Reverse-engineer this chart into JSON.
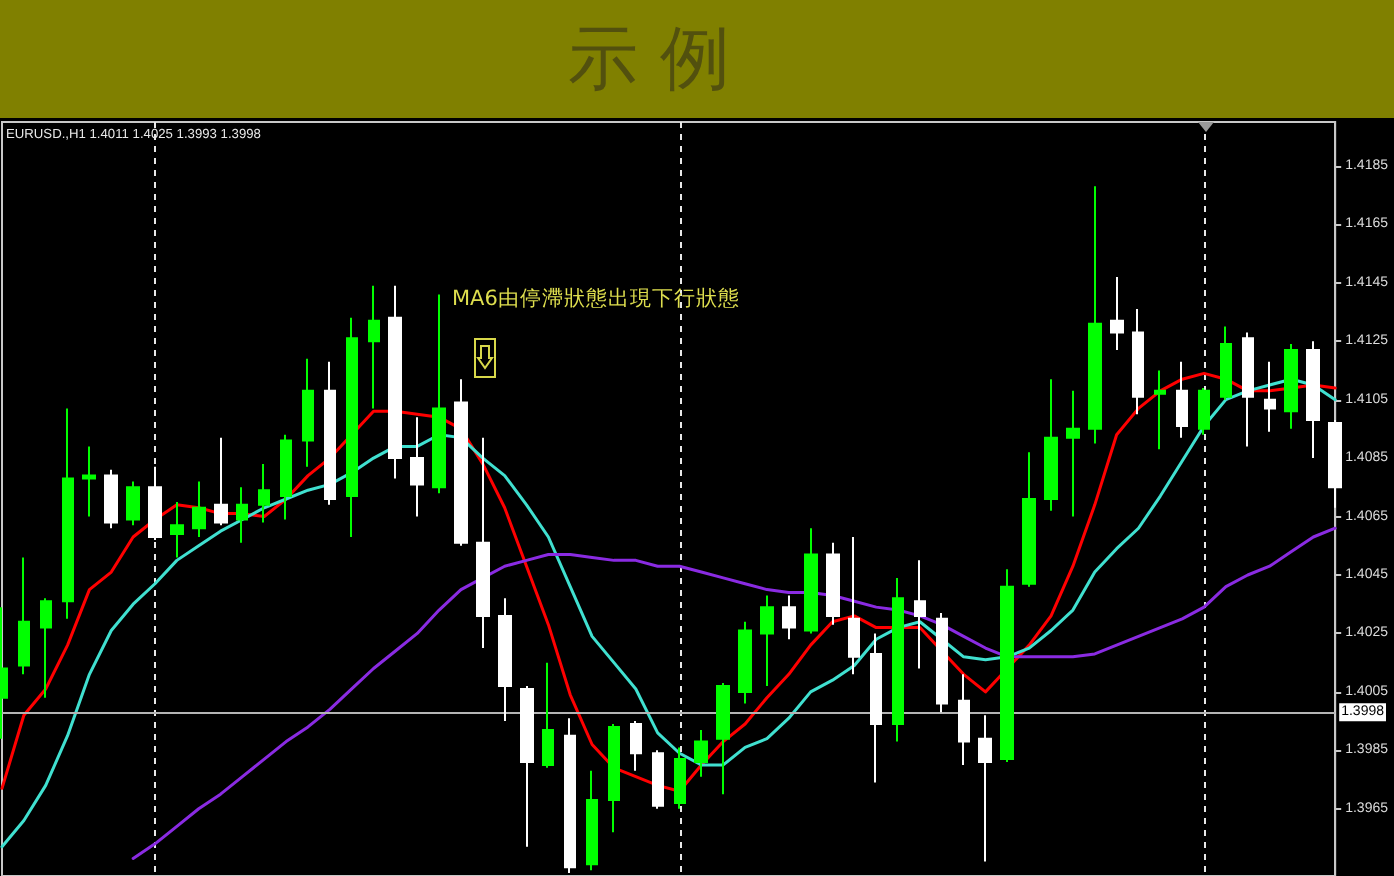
{
  "chart_data": {
    "type": "candlestick",
    "title": "示 例",
    "subtitle": "EURUSD.,H1 1.4011 1.4025 1.3993 1.3998",
    "annotations": [
      "MA6由停滯狀態出現下行狀態"
    ],
    "categories": [
      null,
      null,
      null,
      null,
      null,
      null,
      null,
      null,
      null,
      null,
      null,
      null,
      null,
      null,
      null,
      null,
      null,
      null,
      null,
      null,
      null,
      null,
      null,
      null,
      null,
      null,
      null,
      null,
      null,
      null,
      null,
      null,
      null,
      null,
      null,
      null,
      null,
      null,
      null,
      null,
      null,
      null,
      null,
      null,
      null,
      null,
      null,
      null,
      null,
      null,
      null,
      null,
      null,
      null,
      null,
      null,
      null,
      null,
      null,
      null,
      null,
      null
    ],
    "ohlc": [
      [
        1.4003,
        1.4034,
        1.3989,
        1.4013
      ],
      [
        1.4014,
        1.4051,
        1.4011,
        1.4029
      ],
      [
        1.4027,
        1.4037,
        1.4003,
        1.4036
      ],
      [
        1.4036,
        1.4102,
        1.403,
        1.4078
      ],
      [
        1.4078,
        1.4089,
        1.4065,
        1.4079
      ],
      [
        1.4079,
        1.4081,
        1.4061,
        1.4063
      ],
      [
        1.4064,
        1.4077,
        1.4062,
        1.4075
      ],
      [
        1.4075,
        1.4082,
        1.4057,
        1.4058
      ],
      [
        1.4059,
        1.407,
        1.4051,
        1.4062
      ],
      [
        1.4061,
        1.4077,
        1.4058,
        1.4068
      ],
      [
        1.4069,
        1.4092,
        1.4062,
        1.4063
      ],
      [
        1.4064,
        1.4075,
        1.4056,
        1.4069
      ],
      [
        1.4069,
        1.4083,
        1.4063,
        1.4074
      ],
      [
        1.4072,
        1.4093,
        1.4064,
        1.4091
      ],
      [
        1.4091,
        1.4119,
        1.4082,
        1.4108
      ],
      [
        1.4108,
        1.4118,
        1.4069,
        1.4071
      ],
      [
        1.4072,
        1.4133,
        1.4058,
        1.4126
      ],
      [
        1.4125,
        1.4144,
        1.4102,
        1.4132
      ],
      [
        1.4133,
        1.4144,
        1.4078,
        1.4085
      ],
      [
        1.4085,
        1.4099,
        1.4065,
        1.4076
      ],
      [
        1.4075,
        1.4141,
        1.4073,
        1.4102
      ],
      [
        1.4104,
        1.4112,
        1.4055,
        1.4056
      ],
      [
        1.4056,
        1.4092,
        1.402,
        1.4031
      ],
      [
        1.4031,
        1.4037,
        1.3995,
        1.4007
      ],
      [
        1.4006,
        1.4007,
        1.3952,
        1.3981
      ],
      [
        1.398,
        1.4015,
        1.3979,
        1.3992
      ],
      [
        1.399,
        1.3996,
        1.3943,
        1.3945
      ],
      [
        1.3946,
        1.3978,
        1.3944,
        1.3968
      ],
      [
        1.3968,
        1.3994,
        1.3957,
        1.3993
      ],
      [
        1.3994,
        1.3995,
        1.3978,
        1.3984
      ],
      [
        1.3984,
        1.3985,
        1.3965,
        1.3966
      ],
      [
        1.3967,
        1.3986,
        1.3965,
        1.3982
      ],
      [
        1.3981,
        1.3992,
        1.3976,
        1.3988
      ],
      [
        1.3989,
        1.4008,
        1.397,
        1.4007
      ],
      [
        1.4005,
        1.4029,
        1.4001,
        1.4026
      ],
      [
        1.4025,
        1.4038,
        1.4007,
        1.4034
      ],
      [
        1.4034,
        1.4038,
        1.4023,
        1.4027
      ],
      [
        1.4026,
        1.4061,
        1.4025,
        1.4052
      ],
      [
        1.4052,
        1.4056,
        1.4028,
        1.4031
      ],
      [
        1.403,
        1.4058,
        1.4011,
        1.4017
      ],
      [
        1.4018,
        1.4025,
        1.3974,
        1.3994
      ],
      [
        1.3994,
        1.4044,
        1.3988,
        1.4037
      ],
      [
        1.4036,
        1.405,
        1.4013,
        1.4031
      ],
      [
        1.403,
        1.4032,
        1.3998,
        1.4001
      ],
      [
        1.4002,
        1.4011,
        1.398,
        1.3988
      ],
      [
        1.3989,
        1.3997,
        1.3947,
        1.3981
      ],
      [
        1.3982,
        1.4047,
        1.3981,
        1.4041
      ],
      [
        1.4042,
        1.4087,
        1.4041,
        1.4071
      ],
      [
        1.4071,
        1.4112,
        1.4067,
        1.4092
      ],
      [
        1.4092,
        1.4108,
        1.4065,
        1.4095
      ],
      [
        1.4095,
        1.4178,
        1.409,
        1.4131
      ],
      [
        1.4132,
        1.4147,
        1.4122,
        1.4128
      ],
      [
        1.4128,
        1.4136,
        1.41,
        1.4106
      ],
      [
        1.4107,
        1.4115,
        1.4088,
        1.4108
      ],
      [
        1.4108,
        1.4118,
        1.4092,
        1.4096
      ],
      [
        1.4095,
        1.4109,
        1.4093,
        1.4108
      ],
      [
        1.4106,
        1.413,
        1.4105,
        1.4124
      ],
      [
        1.4126,
        1.4128,
        1.4089,
        1.4106
      ],
      [
        1.4105,
        1.4118,
        1.4094,
        1.4102
      ],
      [
        1.4101,
        1.4124,
        1.4095,
        1.4122
      ],
      [
        1.4122,
        1.4125,
        1.4085,
        1.4098
      ],
      [
        1.4097,
        1.4098,
        1.4068,
        1.4075
      ]
    ],
    "colors": [
      "#00ff00",
      "#00ff00",
      "#00ff00",
      "#00ff00",
      "#00ff00",
      "#ffffff",
      "#00ff00",
      "#ffffff",
      "#00ff00",
      "#00ff00",
      "#ffffff",
      "#00ff00",
      "#00ff00",
      "#00ff00",
      "#00ff00",
      "#ffffff",
      "#00ff00",
      "#00ff00",
      "#ffffff",
      "#ffffff",
      "#00ff00",
      "#ffffff",
      "#ffffff",
      "#ffffff",
      "#ffffff",
      "#00ff00",
      "#ffffff",
      "#00ff00",
      "#00ff00",
      "#ffffff",
      "#ffffff",
      "#00ff00",
      "#00ff00",
      "#00ff00",
      "#00ff00",
      "#00ff00",
      "#ffffff",
      "#00ff00",
      "#ffffff",
      "#ffffff",
      "#ffffff",
      "#00ff00",
      "#ffffff",
      "#ffffff",
      "#ffffff",
      "#ffffff",
      "#00ff00",
      "#00ff00",
      "#00ff00",
      "#00ff00",
      "#00ff00",
      "#ffffff",
      "#ffffff",
      "#00ff00",
      "#ffffff",
      "#00ff00",
      "#00ff00",
      "#ffffff",
      "#ffffff",
      "#00ff00",
      "#ffffff",
      "#ffffff"
    ],
    "series": [
      {
        "type": "line",
        "color": "#ff0000",
        "values": [
          1.3972,
          1.3997,
          1.4006,
          1.4021,
          1.404,
          1.4046,
          1.4058,
          1.4064,
          1.4069,
          1.4068,
          1.4066,
          1.4066,
          1.4065,
          1.4071,
          1.4079,
          1.4085,
          1.4093,
          1.4101,
          1.4101,
          1.41,
          1.4099,
          1.4095,
          1.4083,
          1.4068,
          1.4048,
          1.4028,
          1.4004,
          1.3987,
          1.3979,
          1.3976,
          1.3973,
          1.3971,
          1.398,
          1.3988,
          1.3994,
          1.4003,
          1.4011,
          1.4021,
          1.4029,
          1.4031,
          1.4027,
          1.4027,
          1.4027,
          1.4019,
          1.4011,
          1.4005,
          1.4013,
          1.4021,
          1.4031,
          1.4048,
          1.4069,
          1.4093,
          1.4102,
          1.4108,
          1.4112,
          1.4114,
          1.4112,
          1.4108,
          1.4108,
          1.4109,
          1.411,
          1.4109
        ]
      },
      {
        "type": "line",
        "color": "#40e0d0",
        "values": [
          1.3952,
          1.3961,
          1.3973,
          1.399,
          1.4011,
          1.4026,
          1.4035,
          1.4042,
          1.405,
          1.4055,
          1.406,
          1.4064,
          1.4068,
          1.4071,
          1.4074,
          1.4076,
          1.408,
          1.4085,
          1.4089,
          1.4089,
          1.4093,
          1.4092,
          1.4085,
          1.4079,
          1.4069,
          1.4058,
          1.4041,
          1.4024,
          1.4015,
          1.4006,
          1.3991,
          1.3984,
          1.398,
          1.398,
          1.3986,
          1.3989,
          1.3996,
          1.4005,
          1.4009,
          1.4014,
          1.4023,
          1.4027,
          1.4029,
          1.4023,
          1.4017,
          1.4016,
          1.4017,
          1.402,
          1.4026,
          1.4033,
          1.4046,
          1.4054,
          1.4061,
          1.4072,
          1.4084,
          1.4096,
          1.4105,
          1.4108,
          1.411,
          1.4112,
          1.411,
          1.4105
        ]
      },
      {
        "type": "line",
        "color": "#8a2be2",
        "values": [
          null,
          null,
          null,
          null,
          null,
          null,
          1.3948,
          1.3953,
          1.3959,
          1.3965,
          1.397,
          1.3976,
          1.3982,
          1.3988,
          1.3993,
          1.3999,
          1.4006,
          1.4013,
          1.4019,
          1.4025,
          1.4033,
          1.404,
          1.4044,
          1.4048,
          1.405,
          1.4052,
          1.4052,
          1.4051,
          1.405,
          1.405,
          1.4048,
          1.4048,
          1.4046,
          1.4044,
          1.4042,
          1.404,
          1.4039,
          1.4039,
          1.4038,
          1.4036,
          1.4034,
          1.4033,
          1.4031,
          1.4028,
          1.4024,
          1.402,
          1.4017,
          1.4017,
          1.4017,
          1.4017,
          1.4018,
          1.4021,
          1.4024,
          1.4027,
          1.403,
          1.4034,
          1.4041,
          1.4045,
          1.4048,
          1.4053,
          1.4058,
          1.4061
        ]
      }
    ],
    "ylim": [
      1.3942,
      1.42
    ],
    "yticks": [
      1.3965,
      1.3985,
      1.4005,
      1.4025,
      1.4045,
      1.4065,
      1.4085,
      1.4105,
      1.4125,
      1.4145,
      1.4165,
      1.4185
    ],
    "ref_lines": [
      {
        "axis": "y",
        "value": 1.3998,
        "label": "1.3998",
        "color": "#b4b4b4"
      }
    ],
    "grid": "x",
    "tick_labels": "y"
  }
}
